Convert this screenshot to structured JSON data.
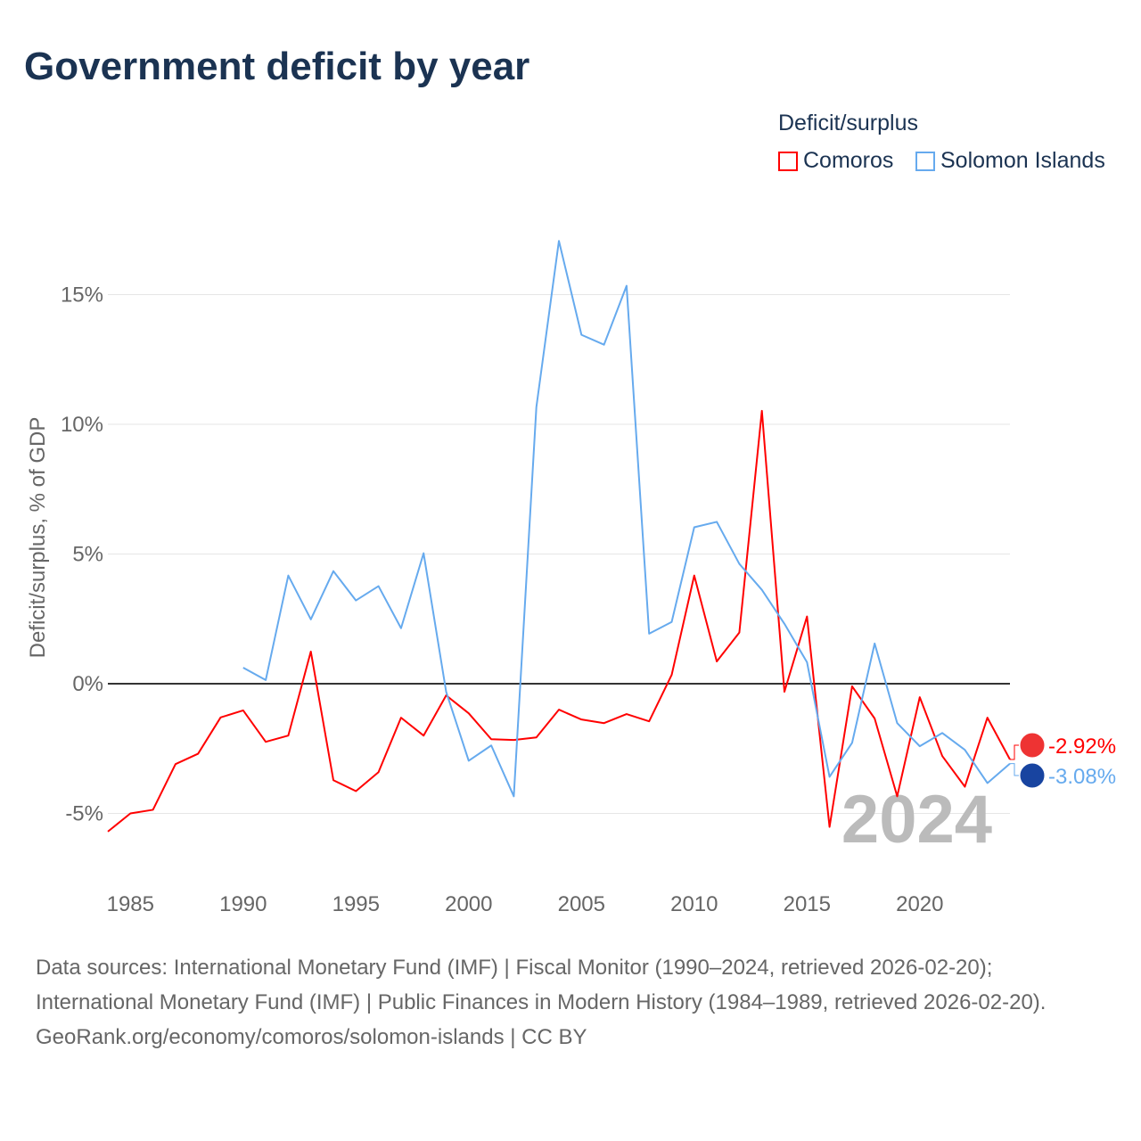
{
  "title": "Government deficit by year",
  "legend": {
    "title": "Deficit/surplus",
    "items": [
      {
        "name": "Comoros",
        "color": "#ff0000"
      },
      {
        "name": "Solomon Islands",
        "color": "#66aaee"
      }
    ]
  },
  "chart_data": {
    "type": "line",
    "title": "Government deficit by year",
    "ylabel": "Deficit/surplus, % of GDP",
    "xlabel": "",
    "xlim": [
      1984,
      2024
    ],
    "ylim": [
      -7.5,
      18
    ],
    "x_ticks": [
      1985,
      1990,
      1995,
      2000,
      2005,
      2010,
      2015,
      2020
    ],
    "x_tick_labels": [
      "1985",
      "1990",
      "1995",
      "2000",
      "2005",
      "2010",
      "2015",
      "2020"
    ],
    "y_ticks": [
      -5,
      0,
      5,
      10,
      15
    ],
    "y_tick_labels": [
      "-5%",
      "0%",
      "5%",
      "10%",
      "15%"
    ],
    "grid": true,
    "year_label": "2024",
    "series": [
      {
        "name": "Comoros",
        "color": "#ff0000",
        "end_label": "-2.92%",
        "start_year": 1984,
        "values": [
          -5.7,
          -5.0,
          -4.86,
          -3.1,
          -2.7,
          -1.3,
          -1.03,
          -2.24,
          -2.0,
          1.24,
          -3.72,
          -4.14,
          -3.41,
          -1.31,
          -2.0,
          -0.45,
          -1.14,
          -2.14,
          -2.17,
          -2.07,
          -1.0,
          -1.38,
          -1.52,
          -1.17,
          -1.45,
          0.34,
          4.17,
          0.86,
          1.97,
          10.52,
          -0.31,
          2.59,
          -5.52,
          -0.1,
          -1.34,
          -4.34,
          -0.52,
          -2.79,
          -3.97,
          -1.31,
          -2.92
        ]
      },
      {
        "name": "Solomon Islands",
        "color": "#66aaee",
        "end_label": "-3.08%",
        "start_year": 1990,
        "values": [
          0.62,
          0.14,
          4.17,
          2.48,
          4.34,
          3.21,
          3.76,
          2.14,
          5.03,
          -0.31,
          -2.97,
          -2.38,
          -4.34,
          10.66,
          17.07,
          13.45,
          13.07,
          15.34,
          1.93,
          2.38,
          6.03,
          6.24,
          4.62,
          3.62,
          2.31,
          0.83,
          -3.59,
          -2.28,
          1.55,
          -1.52,
          -2.41,
          -1.9,
          -2.55,
          -3.83,
          -3.08
        ]
      }
    ]
  },
  "footer": {
    "sources": "Data sources: International Monetary Fund (IMF) | Fiscal Monitor (1990–2024, retrieved 2026-02-20); International Monetary Fund (IMF) | Public Finances in Modern History (1984–1989, retrieved 2026-02-20).",
    "link": "GeoRank.org/economy/comoros/solomon-islands | CC BY"
  }
}
